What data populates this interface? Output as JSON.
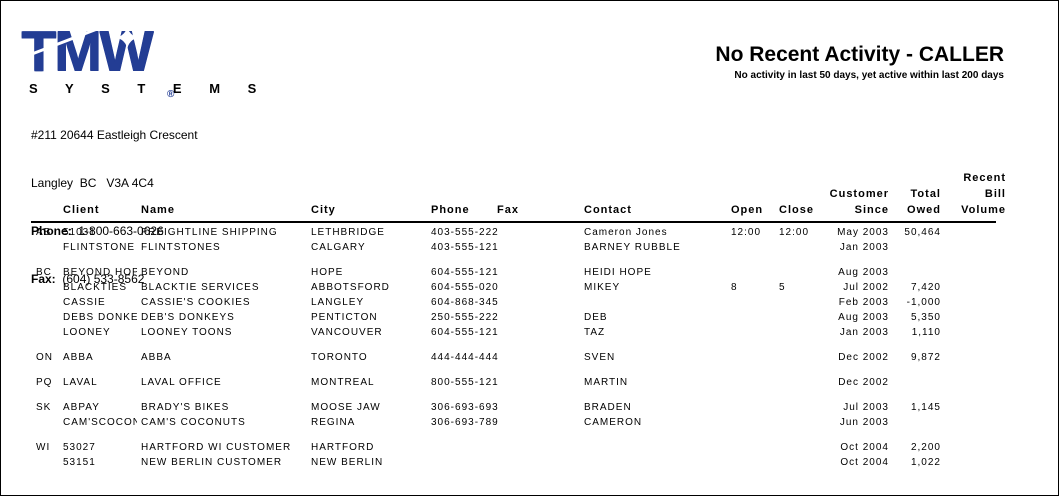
{
  "logo": {
    "brand": "TMW",
    "registered": "®",
    "sub": "S Y S T E M S",
    "brand_color": "#233d94",
    "sparkle_icon": "✦"
  },
  "company": {
    "address_line1": "#211 20644 Eastleigh Crescent",
    "address_line2": "Langley  BC   V3A 4C4",
    "phone_label": "Phone:",
    "phone_value": "1-800-663-0626",
    "fax_label": "Fax:",
    "fax_value": "(604) 533-8562"
  },
  "report": {
    "title": "No Recent Activity - CALLER",
    "subtitle": "No activity in last 50 days, yet active within last 200 days"
  },
  "table": {
    "headers": {
      "client": "Client",
      "name": "Name",
      "city": "City",
      "phone": "Phone",
      "fax": "Fax",
      "contact": "Contact",
      "open": "Open",
      "close": "Close",
      "since_top": "Customer",
      "since": "Since",
      "owed_top": "Total",
      "owed": "Owed",
      "volume_top": "Recent",
      "volume_mid": "Bill",
      "volume": "Volume"
    },
    "groups": [
      {
        "region": "AB",
        "rows": [
          {
            "client": "51031",
            "name": "FREIGHTLINE SHIPPING",
            "city": "LETHBRIDGE",
            "phone": "403-555-222",
            "fax": "",
            "contact": "Cameron Jones",
            "open": "12:00",
            "close": "12:00",
            "since": "May 2003",
            "owed": "50,464",
            "volume": ""
          },
          {
            "client": "FLINTSTONE",
            "name": "FLINTSTONES",
            "city": "CALGARY",
            "phone": "403-555-121",
            "fax": "",
            "contact": "BARNEY RUBBLE",
            "open": "",
            "close": "",
            "since": "Jan 2003",
            "owed": "",
            "volume": ""
          }
        ]
      },
      {
        "region": "BC",
        "rows": [
          {
            "client": "BEYOND HOP",
            "name": "BEYOND",
            "city": "HOPE",
            "phone": "604-555-121",
            "fax": "",
            "contact": "HEIDI HOPE",
            "open": "",
            "close": "",
            "since": "Aug 2003",
            "owed": "",
            "volume": ""
          },
          {
            "client": "BLACKTIES",
            "name": "BLACKTIE SERVICES",
            "city": "ABBOTSFORD",
            "phone": "604-555-020",
            "fax": "",
            "contact": "MIKEY",
            "open": "8",
            "close": "5",
            "since": "Jul 2002",
            "owed": "7,420",
            "volume": ""
          },
          {
            "client": "CASSIE",
            "name": "CASSIE'S COOKIES",
            "city": "LANGLEY",
            "phone": "604-868-345",
            "fax": "",
            "contact": "",
            "open": "",
            "close": "",
            "since": "Feb 2003",
            "owed": "-1,000",
            "volume": ""
          },
          {
            "client": "DEBS DONKE",
            "name": "DEB'S DONKEYS",
            "city": "PENTICTON",
            "phone": "250-555-222",
            "fax": "",
            "contact": "DEB",
            "open": "",
            "close": "",
            "since": "Aug 2003",
            "owed": "5,350",
            "volume": ""
          },
          {
            "client": "LOONEY",
            "name": "LOONEY TOONS",
            "city": "VANCOUVER",
            "phone": "604-555-121",
            "fax": "",
            "contact": "TAZ",
            "open": "",
            "close": "",
            "since": "Jan 2003",
            "owed": "1,110",
            "volume": ""
          }
        ]
      },
      {
        "region": "ON",
        "rows": [
          {
            "client": "ABBA",
            "name": "ABBA",
            "city": "TORONTO",
            "phone": "444-444-444",
            "fax": "",
            "contact": "SVEN",
            "open": "",
            "close": "",
            "since": "Dec 2002",
            "owed": "9,872",
            "volume": ""
          }
        ]
      },
      {
        "region": "PQ",
        "rows": [
          {
            "client": "LAVAL",
            "name": "LAVAL OFFICE",
            "city": "MONTREAL",
            "phone": "800-555-121",
            "fax": "",
            "contact": "MARTIN",
            "open": "",
            "close": "",
            "since": "Dec 2002",
            "owed": "",
            "volume": ""
          }
        ]
      },
      {
        "region": "SK",
        "rows": [
          {
            "client": "ABPAY",
            "name": "BRADY'S BIKES",
            "city": "MOOSE JAW",
            "phone": "306-693-693",
            "fax": "",
            "contact": "BRADEN",
            "open": "",
            "close": "",
            "since": "Jul 2003",
            "owed": "1,145",
            "volume": ""
          },
          {
            "client": "CAM'SCOCON",
            "name": "CAM'S COCONUTS",
            "city": "REGINA",
            "phone": "306-693-789",
            "fax": "",
            "contact": "CAMERON",
            "open": "",
            "close": "",
            "since": "Jun 2003",
            "owed": "",
            "volume": ""
          }
        ]
      },
      {
        "region": "WI",
        "rows": [
          {
            "client": "53027",
            "name": "HARTFORD WI CUSTOMER",
            "city": "HARTFORD",
            "phone": "",
            "fax": "",
            "contact": "",
            "open": "",
            "close": "",
            "since": "Oct 2004",
            "owed": "2,200",
            "volume": ""
          },
          {
            "client": "53151",
            "name": "NEW BERLIN CUSTOMER",
            "city": "NEW BERLIN",
            "phone": "",
            "fax": "",
            "contact": "",
            "open": "",
            "close": "",
            "since": "Oct 2004",
            "owed": "1,022",
            "volume": ""
          }
        ]
      }
    ]
  }
}
